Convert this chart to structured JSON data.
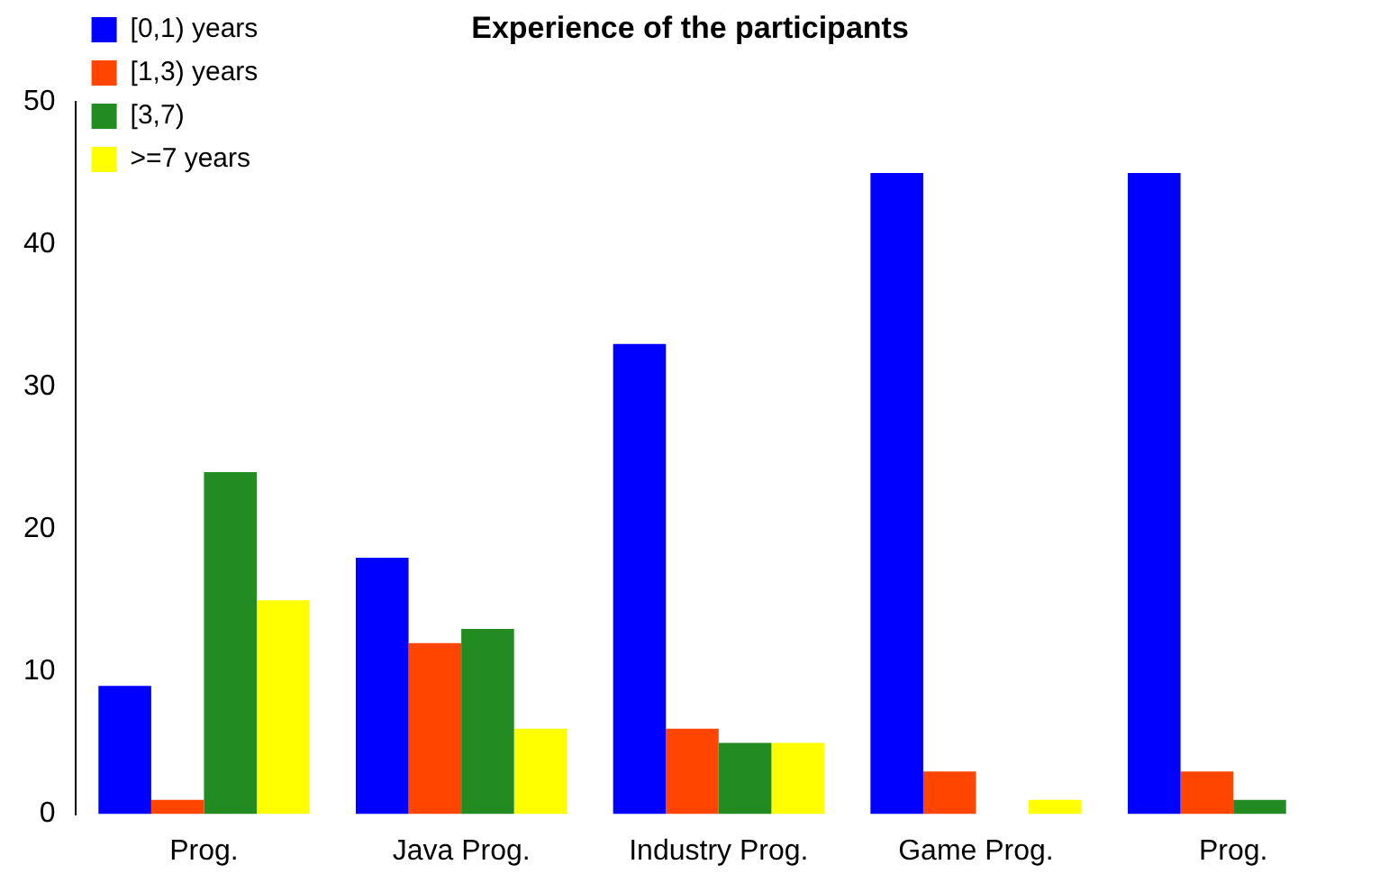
{
  "chart_data": {
    "type": "bar",
    "title": "Experience of the participants",
    "categories": [
      "Prog.",
      "Java Prog.",
      "Industry Prog.",
      "Game Prog.",
      "Prog."
    ],
    "series": [
      {
        "name": "[0,1) years",
        "color": "#0000ff",
        "values": [
          9,
          18,
          33,
          45,
          45
        ]
      },
      {
        "name": "[1,3) years",
        "color": "#ff4500",
        "values": [
          1,
          12,
          6,
          3,
          3
        ]
      },
      {
        "name": "[3,7)",
        "color": "#228b22",
        "values": [
          24,
          13,
          5,
          0,
          1
        ]
      },
      {
        "name": ">=7 years",
        "color": "#ffff00",
        "values": [
          15,
          6,
          5,
          1,
          0
        ]
      }
    ],
    "ylim": [
      0,
      50
    ],
    "yticks": [
      0,
      10,
      20,
      30,
      40,
      50
    ],
    "grid": false,
    "legend": "top left"
  }
}
